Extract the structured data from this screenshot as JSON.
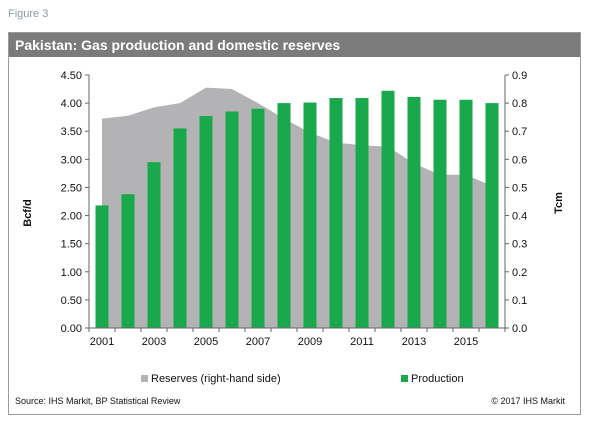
{
  "figure_label": "Figure 3",
  "footer": {
    "source": "Source:  IHS Markit, BP Statistical Review",
    "copyright": "© 2017  IHS Markit"
  },
  "colors": {
    "production": "#1aa84c",
    "reserves": "#b3b3b5",
    "title_bar": "#7b7b7b"
  },
  "chart_data": {
    "type": "bar",
    "title": "Pakistan: Gas production and domestic reserves",
    "years": [
      2001,
      2002,
      2003,
      2004,
      2005,
      2006,
      2007,
      2008,
      2009,
      2010,
      2011,
      2012,
      2013,
      2014,
      2015,
      2016
    ],
    "x_tick_labels": [
      "2001",
      "2003",
      "2005",
      "2007",
      "2009",
      "2011",
      "2013",
      "2015"
    ],
    "ylabel_left": "Bcf/d",
    "ylabel_right": "Tcm",
    "ylim_left": [
      0,
      4.5
    ],
    "ylim_right": [
      0,
      0.9
    ],
    "yticks_left": [
      "0.00",
      "0.50",
      "1.00",
      "1.50",
      "2.00",
      "2.50",
      "3.00",
      "3.50",
      "4.00",
      "4.50"
    ],
    "yticks_right": [
      "0.0",
      "0.1",
      "0.2",
      "0.3",
      "0.4",
      "0.5",
      "0.6",
      "0.7",
      "0.8",
      "0.9"
    ],
    "legend_position": "bottom",
    "grid": false,
    "series": [
      {
        "name": "Reserves (right-hand side)",
        "type": "area",
        "axis": "right",
        "values": [
          0.745,
          0.755,
          0.785,
          0.8,
          0.855,
          0.85,
          0.8,
          0.745,
          0.695,
          0.66,
          0.65,
          0.645,
          0.585,
          0.545,
          0.545,
          0.505
        ]
      },
      {
        "name": "Production",
        "type": "bar",
        "axis": "left",
        "values": [
          2.18,
          2.38,
          2.95,
          3.55,
          3.77,
          3.85,
          3.9,
          4.0,
          4.01,
          4.09,
          4.09,
          4.22,
          4.11,
          4.06,
          4.06,
          4.0
        ]
      }
    ]
  }
}
